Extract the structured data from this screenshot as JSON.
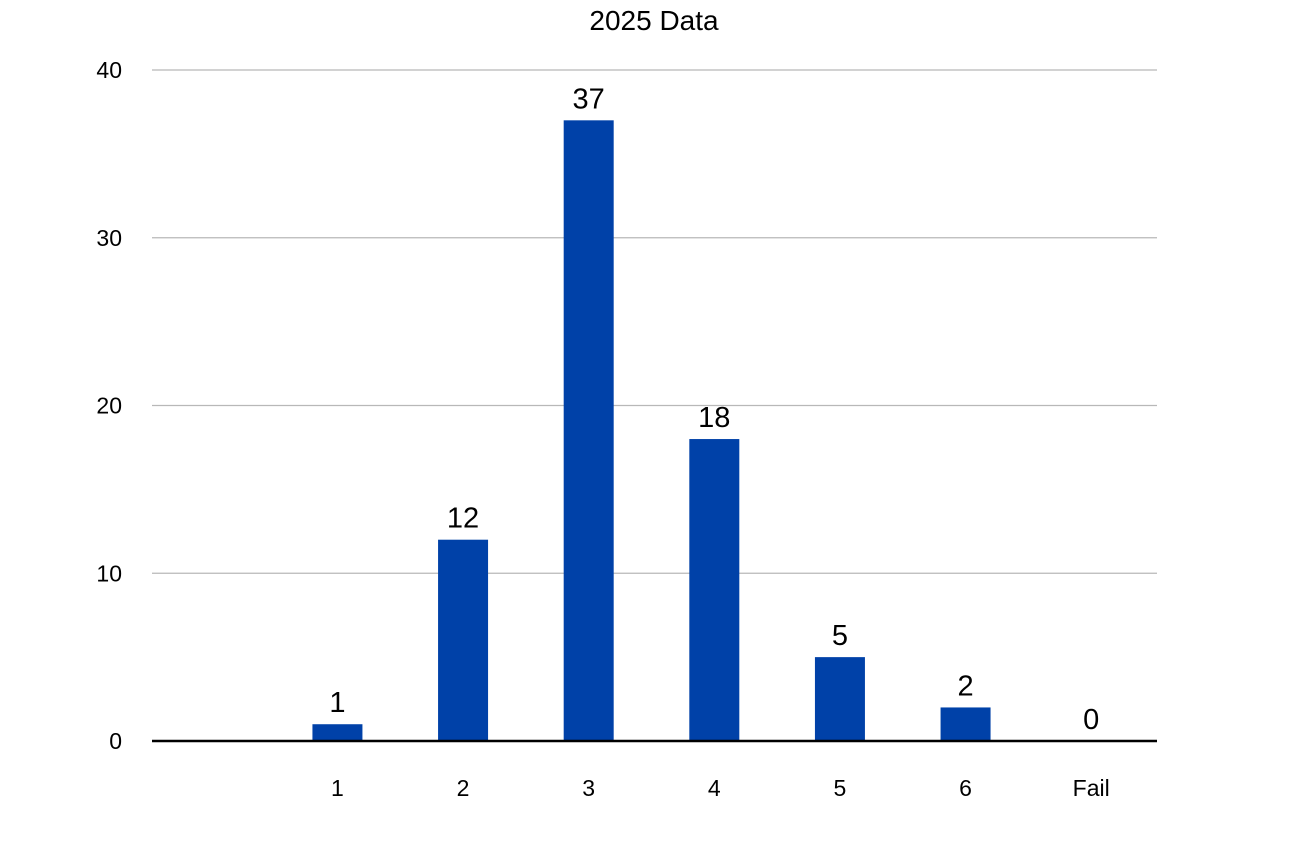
{
  "chart_data": {
    "type": "bar",
    "title": "2025 Data",
    "xlabel": "",
    "ylabel": "",
    "categories": [
      "",
      "1",
      "2",
      "3",
      "4",
      "5",
      "6",
      "Fail"
    ],
    "values": [
      null,
      1,
      12,
      37,
      18,
      5,
      2,
      0
    ],
    "data_labels": [
      "",
      "1",
      "12",
      "37",
      "18",
      "5",
      "2",
      "0"
    ],
    "ylim": [
      0,
      40
    ],
    "yticks": [
      0,
      10,
      20,
      30,
      40
    ],
    "ytick_labels": [
      "0",
      "10",
      "20",
      "30",
      "40"
    ],
    "grid": true,
    "legend": "none",
    "bar_color": "#0041a8"
  }
}
